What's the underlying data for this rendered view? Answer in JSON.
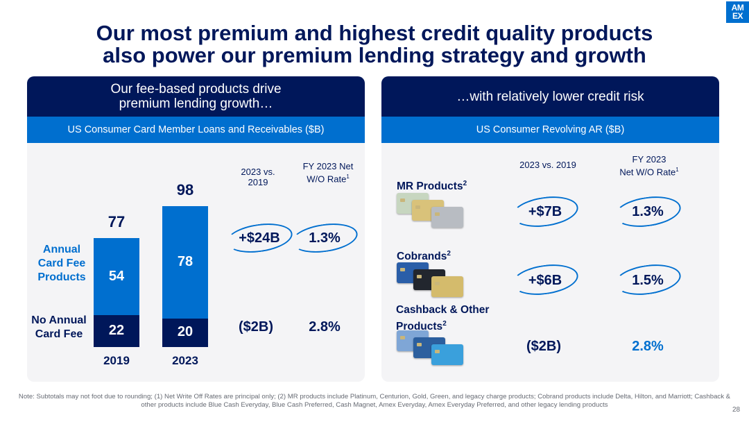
{
  "logo": {
    "line1": "AM",
    "line2": "EX"
  },
  "title": {
    "line1": "Our most premium and highest credit quality products",
    "line2": "also power our premium lending strategy and growth"
  },
  "left_panel": {
    "header_line1": "Our fee-based products drive",
    "header_line2": "premium lending growth…",
    "subheader": "US Consumer Card Member Loans and Receivables ($B)",
    "category_annual": "Annual Card Fee Products",
    "category_no_annual": "No Annual Card Fee",
    "col_change_header": "2023 vs. 2019",
    "col_rate_header": "FY 2023 Net W/O Rate",
    "col_rate_footnote": "1",
    "rows": [
      {
        "change": "+$24B",
        "rate": "1.3%"
      },
      {
        "change": "($2B)",
        "rate": "2.8%"
      }
    ]
  },
  "right_panel": {
    "header": "…with relatively lower credit risk",
    "subheader": "US Consumer Revolving AR ($B)",
    "col_change_header": "2023 vs. 2019",
    "col_rate_header_line1": "FY 2023",
    "col_rate_header_line2": "Net W/O Rate",
    "col_rate_footnote": "1",
    "rows": [
      {
        "label": "MR Products",
        "footnote": "2",
        "change": "+$7B",
        "rate": "1.3%",
        "card_colors": [
          "#c7d6c0",
          "#d9c27a",
          "#b8bcc2"
        ]
      },
      {
        "label": "Cobrands",
        "footnote": "2",
        "change": "+$6B",
        "rate": "1.5%",
        "card_colors": [
          "#2a5ea8",
          "#22262e",
          "#d4bb6c"
        ]
      },
      {
        "label_line1": "Cashback & Other",
        "label_line2": "Products",
        "footnote": "2",
        "change": "($2B)",
        "rate": "2.8%",
        "card_colors": [
          "#7fa6d6",
          "#2c5f9e",
          "#3aa0dc"
        ]
      }
    ]
  },
  "chart_data": {
    "type": "bar",
    "stacked": true,
    "title": "US Consumer Card Member Loans and Receivables ($B)",
    "categories": [
      "2019",
      "2023"
    ],
    "series": [
      {
        "name": "No Annual Card Fee",
        "values": [
          22,
          20
        ],
        "color": "#00175a"
      },
      {
        "name": "Annual Card Fee Products",
        "values": [
          54,
          78
        ],
        "color": "#006fcf"
      }
    ],
    "totals": [
      77,
      98
    ],
    "ylim": [
      0,
      98
    ]
  },
  "footnote": "Note: Subtotals may not foot due to rounding; (1) Net Write Off Rates are principal only; (2) MR products include Platinum, Centurion, Gold, Green, and legacy charge products; Cobrand products include Delta, Hilton, and Marriott; Cashback & other products include Blue Cash Everyday, Blue Cash Preferred, Cash Magnet, Amex Everyday, Amex Everyday Preferred, and other legacy lending products",
  "page_number": "28",
  "colors": {
    "navy": "#00175a",
    "brand_blue": "#006fcf",
    "panel_bg": "#f4f4f6"
  }
}
